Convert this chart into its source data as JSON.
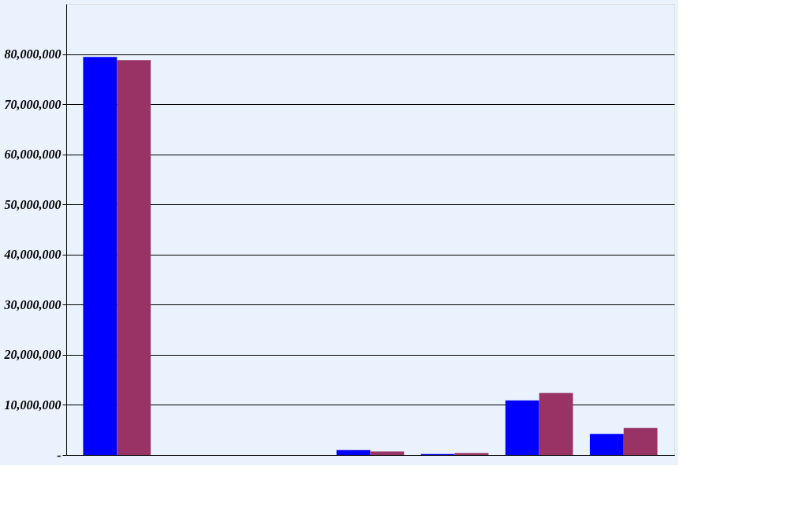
{
  "chart_data": {
    "type": "bar",
    "categories": [
      null,
      null,
      null,
      null,
      null,
      null,
      null
    ],
    "series": [
      {
        "color": "#0000ff",
        "values": [
          79400000,
          0,
          0,
          1000000,
          200000,
          10900000,
          4200000
        ]
      },
      {
        "color": "#993366",
        "values": [
          78800000,
          0,
          0,
          700000,
          400000,
          12400000,
          5400000
        ]
      }
    ],
    "ylim": [
      0,
      90000000
    ],
    "yticks": [
      {
        "value": 0,
        "label": "-"
      },
      {
        "value": 10000000,
        "label": "10,000,000"
      },
      {
        "value": 20000000,
        "label": "20,000,000"
      },
      {
        "value": 30000000,
        "label": "30,000,000"
      },
      {
        "value": 40000000,
        "label": "40,000,000"
      },
      {
        "value": 50000000,
        "label": "50,000,000"
      },
      {
        "value": 60000000,
        "label": "60,000,000"
      },
      {
        "value": 70000000,
        "label": "70,000,000"
      },
      {
        "value": 80000000,
        "label": "80,000,000"
      }
    ],
    "grid": "y",
    "tick_labels": "y"
  }
}
